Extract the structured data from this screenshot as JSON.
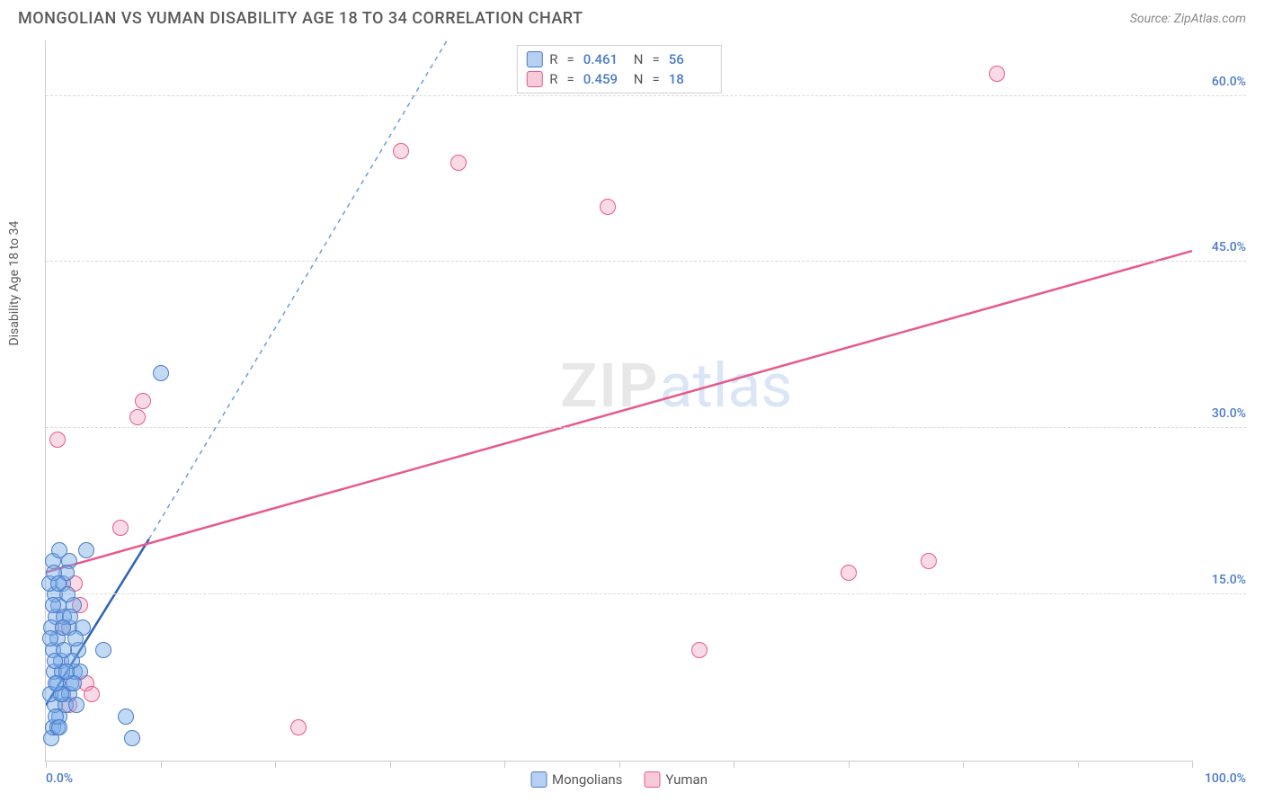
{
  "header": {
    "title": "MONGOLIAN VS YUMAN DISABILITY AGE 18 TO 34 CORRELATION CHART",
    "source_prefix": "Source: ",
    "source": "ZipAtlas.com"
  },
  "axes": {
    "ylabel": "Disability Age 18 to 34",
    "xlim": [
      0,
      100
    ],
    "ylim": [
      0,
      65
    ],
    "xtick_positions": [
      0,
      10,
      20,
      30,
      40,
      50,
      60,
      70,
      80,
      90,
      100
    ],
    "xtick_labels": {
      "0": "0.0%",
      "100": "100.0%"
    },
    "ytick_positions": [
      15,
      30,
      45,
      60
    ],
    "ytick_labels": {
      "15": "15.0%",
      "30": "30.0%",
      "45": "45.0%",
      "60": "60.0%"
    },
    "grid_color": "#dadada",
    "axis_color": "#cccccc",
    "tick_label_color": "#4a7bc8",
    "label_color": "#5a5a5a"
  },
  "series": {
    "mongolian": {
      "label": "Mongolians",
      "point_fill": "rgba(120,170,230,0.45)",
      "point_stroke": "#4a7bc8",
      "swatch_fill": "rgba(120,170,230,0.55)",
      "swatch_stroke": "#4a7bc8",
      "trend_color_solid": "#2e62b8",
      "trend_color_dashed": "#6a9cdc",
      "trend_width": 2.5,
      "trend_dash": "5,5",
      "marker_radius": 9,
      "stats": {
        "R": "0.461",
        "N": "56"
      },
      "trend_solid": {
        "x1": 0,
        "y1": 5,
        "x2": 9,
        "y2": 20
      },
      "trend_dash_seg": {
        "x1": 9,
        "y1": 20,
        "x2": 35,
        "y2": 65
      },
      "points": [
        [
          0.5,
          2
        ],
        [
          0.6,
          3
        ],
        [
          1,
          3
        ],
        [
          1.2,
          4
        ],
        [
          0.8,
          5
        ],
        [
          1.5,
          6
        ],
        [
          2,
          6
        ],
        [
          1,
          7
        ],
        [
          2.2,
          7
        ],
        [
          0.7,
          8
        ],
        [
          2.5,
          8
        ],
        [
          3,
          8
        ],
        [
          1.3,
          9
        ],
        [
          2.8,
          10
        ],
        [
          0.6,
          10
        ],
        [
          5,
          10
        ],
        [
          1,
          11
        ],
        [
          2,
          12
        ],
        [
          3.2,
          12
        ],
        [
          0.9,
          13
        ],
        [
          1.6,
          13
        ],
        [
          2.4,
          14
        ],
        [
          1.1,
          14
        ],
        [
          0.8,
          15
        ],
        [
          1.5,
          16
        ],
        [
          0.3,
          16
        ],
        [
          2,
          18
        ],
        [
          0.6,
          18
        ],
        [
          3.5,
          19
        ],
        [
          1.2,
          19
        ],
        [
          7,
          4
        ],
        [
          7.5,
          2
        ],
        [
          1.8,
          17
        ],
        [
          0.4,
          6
        ],
        [
          1.7,
          5
        ],
        [
          2.3,
          9
        ],
        [
          0.9,
          4
        ],
        [
          1.4,
          8
        ],
        [
          2.6,
          11
        ],
        [
          0.5,
          12
        ],
        [
          1.9,
          15
        ],
        [
          0.7,
          17
        ],
        [
          2.1,
          13
        ],
        [
          1.3,
          6
        ],
        [
          0.8,
          9
        ],
        [
          1.6,
          10
        ],
        [
          2.4,
          7
        ],
        [
          0.6,
          14
        ],
        [
          1.1,
          16
        ],
        [
          1.8,
          8
        ],
        [
          0.4,
          11
        ],
        [
          1.5,
          12
        ],
        [
          2.7,
          5
        ],
        [
          0.9,
          7
        ],
        [
          1.2,
          3
        ],
        [
          10,
          35
        ]
      ]
    },
    "yuman": {
      "label": "Yuman",
      "point_fill": "rgba(240,150,180,0.35)",
      "point_stroke": "#e85a8a",
      "swatch_fill": "rgba(240,150,180,0.5)",
      "swatch_stroke": "#e85a8a",
      "trend_color": "#e85a8a",
      "trend_width": 2.5,
      "marker_radius": 9,
      "stats": {
        "R": "0.459",
        "N": "18"
      },
      "trend": {
        "x1": 0,
        "y1": 17,
        "x2": 100,
        "y2": 46
      },
      "points": [
        [
          1,
          29
        ],
        [
          8,
          31
        ],
        [
          8.5,
          32.5
        ],
        [
          6.5,
          21
        ],
        [
          22,
          3
        ],
        [
          3,
          14
        ],
        [
          57,
          10
        ],
        [
          49,
          50
        ],
        [
          31,
          55
        ],
        [
          36,
          54
        ],
        [
          70,
          17
        ],
        [
          77,
          18
        ],
        [
          83,
          62
        ],
        [
          2,
          5
        ],
        [
          3.5,
          7
        ],
        [
          1.5,
          12
        ],
        [
          4,
          6
        ],
        [
          2.5,
          16
        ]
      ]
    }
  },
  "legend_top": {
    "labels": {
      "R": "R",
      "eq": "=",
      "N": "N"
    }
  },
  "legend_bottom": {
    "items": [
      "mongolian",
      "yuman"
    ]
  },
  "watermark": {
    "part1": "ZIP",
    "part2": "atlas"
  },
  "chart_style": {
    "type": "scatter",
    "background_color": "#ffffff",
    "title_fontsize": 18,
    "title_color": "#5a5a5a",
    "source_fontsize": 14,
    "source_color": "#888888"
  }
}
